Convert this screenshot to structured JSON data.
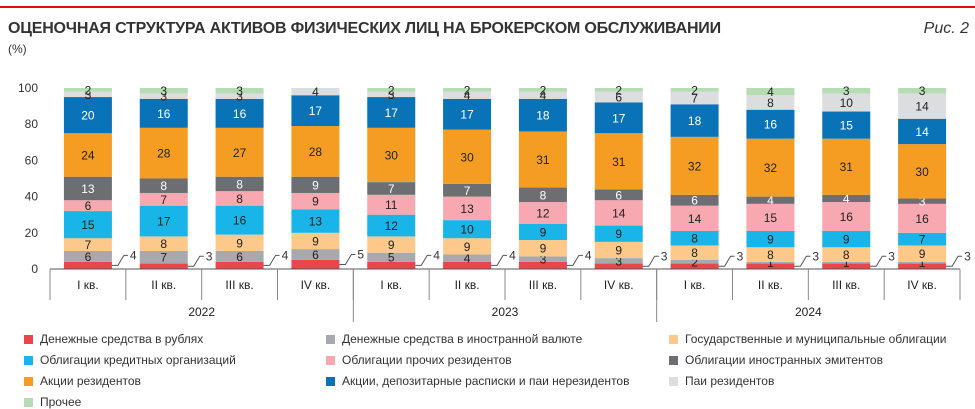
{
  "header": {
    "title": "ОЦЕНОЧНАЯ СТРУКТУРА АКТИВОВ ФИЗИЧЕСКИХ ЛИЦ НА БРОКЕРСКОМ ОБСЛУЖИВАНИИ",
    "figure_label": "Рис. 2",
    "unit": "(%)",
    "accent_color": "#e30613"
  },
  "chart_data": {
    "type": "bar",
    "stacked": true,
    "title": "ОЦЕНОЧНАЯ СТРУКТУРА АКТИВОВ ФИЗИЧЕСКИХ ЛИЦ НА БРОКЕРСКОМ ОБСЛУЖИВАНИИ",
    "ylabel": "(%)",
    "ylim": [
      0,
      100
    ],
    "yticks": [
      0,
      20,
      40,
      60,
      80,
      100
    ],
    "categories": [
      "I кв.",
      "II кв.",
      "III кв.",
      "IV кв.",
      "I кв.",
      "II кв.",
      "III кв.",
      "IV кв.",
      "I кв.",
      "II кв.",
      "III кв.",
      "IV кв."
    ],
    "years": [
      {
        "label": "2022",
        "count": 4
      },
      {
        "label": "2023",
        "count": 4
      },
      {
        "label": "2024",
        "count": 4
      }
    ],
    "series": [
      {
        "name": "Денежные средства в рублях",
        "color": "#e8464b",
        "values": [
          4,
          3,
          4,
          5,
          4,
          4,
          4,
          3,
          3,
          3,
          3,
          3
        ],
        "label_outside": true
      },
      {
        "name": "Денежные средства в иностранной валюте",
        "color": "#a7a9ac",
        "values": [
          6,
          7,
          6,
          6,
          5,
          4,
          3,
          3,
          2,
          1,
          1,
          1
        ]
      },
      {
        "name": "Государственные и муниципальные облигации",
        "color": "#fdc98a",
        "values": [
          7,
          8,
          9,
          9,
          9,
          9,
          9,
          9,
          8,
          8,
          8,
          9
        ]
      },
      {
        "name": "Облигации кредитных организаций",
        "color": "#19b5e8",
        "values": [
          15,
          17,
          16,
          13,
          12,
          10,
          9,
          9,
          8,
          9,
          9,
          7
        ]
      },
      {
        "name": "Облигации прочих резидентов",
        "color": "#f7a8b0",
        "values": [
          6,
          7,
          8,
          9,
          11,
          13,
          12,
          14,
          14,
          15,
          16,
          16
        ]
      },
      {
        "name": "Облигации иностранных эмитентов",
        "color": "#6d6e71",
        "values": [
          13,
          8,
          8,
          9,
          7,
          7,
          8,
          6,
          6,
          4,
          4,
          3
        ]
      },
      {
        "name": "Акции резидентов",
        "color": "#f59d22",
        "values": [
          24,
          28,
          27,
          28,
          30,
          30,
          31,
          31,
          32,
          32,
          31,
          30
        ]
      },
      {
        "name": "Акции, депозитарные расписки и паи нерезидентов",
        "color": "#0a73b7",
        "values": [
          20,
          16,
          16,
          17,
          17,
          17,
          18,
          17,
          18,
          16,
          15,
          14
        ]
      },
      {
        "name": "Паи резидентов",
        "color": "#dcdddf",
        "values": [
          3,
          3,
          3,
          4,
          3,
          4,
          4,
          6,
          7,
          8,
          10,
          14
        ]
      },
      {
        "name": "Прочее",
        "color": "#b5dcb2",
        "values": [
          2,
          3,
          3,
          0,
          2,
          2,
          2,
          2,
          2,
          4,
          3,
          3
        ]
      }
    ]
  }
}
